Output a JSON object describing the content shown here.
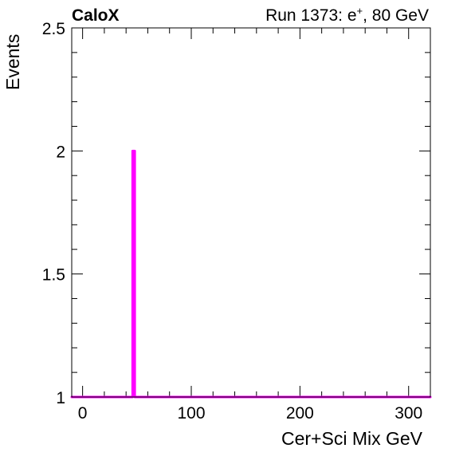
{
  "header": {
    "left_title": "CaloX",
    "right_title_prefix": "Run 1373: e",
    "right_title_sup": "+",
    "right_title_suffix": ", 80 GeV"
  },
  "chart_data": {
    "type": "line",
    "xlabel": "Cer+Sci Mix GeV",
    "ylabel": "Events",
    "xlim": [
      -10,
      320
    ],
    "ylim": [
      1,
      2.5
    ],
    "x_ticks": [
      0,
      100,
      200,
      300
    ],
    "x_tick_labels": [
      "0",
      "100",
      "200",
      "300"
    ],
    "y_ticks": [
      1,
      1.5,
      2,
      2.5
    ],
    "y_tick_labels": [
      "1",
      "1.5",
      "2",
      "2.5"
    ],
    "series": [
      {
        "color": "#ff00ff",
        "points": [
          [
            -10,
            1
          ],
          [
            46,
            1
          ],
          [
            46,
            2
          ],
          [
            48,
            2
          ],
          [
            48,
            1
          ],
          [
            320,
            1
          ]
        ]
      }
    ],
    "grid": false,
    "legend": "none"
  }
}
